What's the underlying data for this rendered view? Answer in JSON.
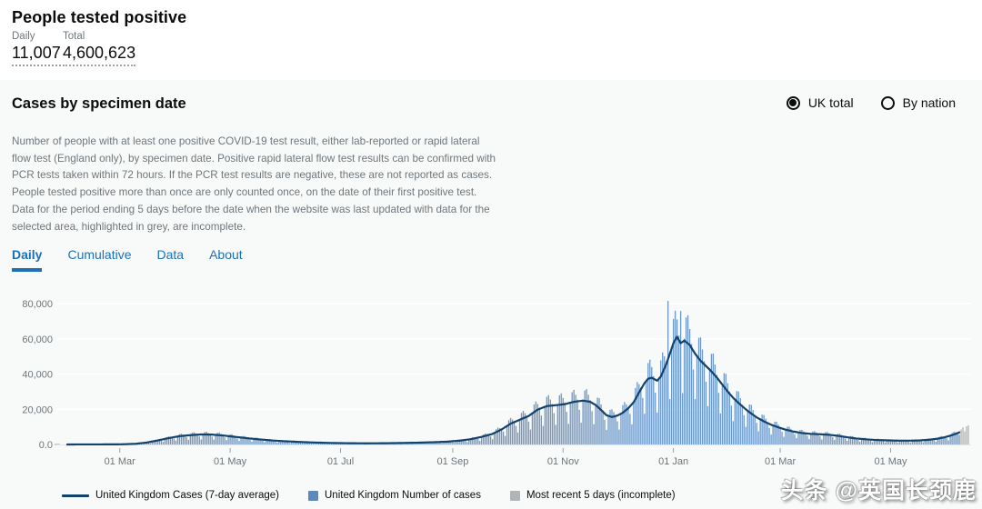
{
  "header": {
    "title": "People tested positive",
    "metrics": [
      {
        "label": "Daily",
        "value": "11,007"
      },
      {
        "label": "Total",
        "value": "4,600,623"
      }
    ]
  },
  "card": {
    "title": "Cases by specimen date",
    "area_toggle": [
      {
        "label": "UK total",
        "selected": true
      },
      {
        "label": "By nation",
        "selected": false
      }
    ],
    "description": "Number of people with at least one positive COVID-19 test result, either lab-reported or rapid lateral flow test (England only), by specimen date. Positive rapid lateral flow test results can be confirmed with PCR tests taken within 72 hours. If the PCR test results are negative, these are not reported as cases. People tested positive more than once are only counted once, on the date of their first positive test. Data for the period ending 5 days before the date when the website was last updated with data for the selected area, highlighted in grey, are incomplete.",
    "tabs": [
      {
        "label": "Daily",
        "active": true
      },
      {
        "label": "Cumulative",
        "active": false
      },
      {
        "label": "Data",
        "active": false
      },
      {
        "label": "About",
        "active": false
      }
    ]
  },
  "chart_data": {
    "type": "bar",
    "title": "Cases by specimen date — Daily",
    "grid": true,
    "legend_position": "bottom",
    "x_axis": {
      "total_days": 499,
      "tick_days": [
        29,
        90,
        151,
        213,
        274,
        335,
        394,
        455
      ],
      "tick_labels": [
        "01 Mar",
        "01 May",
        "01 Jul",
        "01 Sep",
        "01 Nov",
        "01 Jan",
        "01 Mar",
        "01 May"
      ]
    },
    "y_axis": {
      "ticks": [
        0,
        20000,
        40000,
        60000,
        80000
      ],
      "tick_labels": [
        "0.0",
        "20,000",
        "40,000",
        "60,000",
        "80,000"
      ],
      "ylim": [
        0,
        88000
      ]
    },
    "series": [
      {
        "name": "United Kingdom Cases (7-day average)",
        "type": "line",
        "color": "#12436d",
        "end_day": 493,
        "anchors": [
          [
            0,
            15
          ],
          [
            15,
            25
          ],
          [
            30,
            90
          ],
          [
            38,
            400
          ],
          [
            44,
            1100
          ],
          [
            50,
            2300
          ],
          [
            56,
            3600
          ],
          [
            62,
            4700
          ],
          [
            68,
            5300
          ],
          [
            74,
            5700
          ],
          [
            80,
            5600
          ],
          [
            86,
            5100
          ],
          [
            92,
            4400
          ],
          [
            99,
            3600
          ],
          [
            106,
            2900
          ],
          [
            113,
            2300
          ],
          [
            120,
            1850
          ],
          [
            127,
            1500
          ],
          [
            135,
            1150
          ],
          [
            145,
            880
          ],
          [
            155,
            720
          ],
          [
            165,
            650
          ],
          [
            175,
            700
          ],
          [
            185,
            850
          ],
          [
            195,
            1050
          ],
          [
            203,
            1300
          ],
          [
            210,
            1600
          ],
          [
            217,
            2200
          ],
          [
            223,
            3000
          ],
          [
            229,
            4300
          ],
          [
            235,
            6000
          ],
          [
            240,
            8500
          ],
          [
            245,
            11800
          ],
          [
            250,
            14000
          ],
          [
            255,
            16200
          ],
          [
            260,
            19800
          ],
          [
            265,
            21800
          ],
          [
            270,
            22300
          ],
          [
            275,
            22900
          ],
          [
            280,
            24200
          ],
          [
            285,
            24900
          ],
          [
            289,
            24200
          ],
          [
            292,
            22400
          ],
          [
            295,
            19600
          ],
          [
            298,
            16600
          ],
          [
            301,
            15600
          ],
          [
            304,
            16400
          ],
          [
            307,
            18000
          ],
          [
            310,
            20500
          ],
          [
            313,
            24000
          ],
          [
            316,
            29500
          ],
          [
            319,
            34800
          ],
          [
            321,
            37300
          ],
          [
            323,
            37900
          ],
          [
            326,
            36200
          ],
          [
            328,
            38500
          ],
          [
            331,
            45500
          ],
          [
            333,
            51500
          ],
          [
            335,
            57500
          ],
          [
            337,
            61200
          ],
          [
            339,
            57500
          ],
          [
            341,
            59000
          ],
          [
            344,
            56500
          ],
          [
            347,
            51500
          ],
          [
            350,
            47500
          ],
          [
            353,
            44500
          ],
          [
            356,
            41500
          ],
          [
            359,
            38000
          ],
          [
            362,
            34000
          ],
          [
            365,
            30000
          ],
          [
            368,
            26500
          ],
          [
            371,
            23500
          ],
          [
            374,
            20800
          ],
          [
            377,
            18300
          ],
          [
            381,
            15400
          ],
          [
            385,
            13100
          ],
          [
            389,
            11200
          ],
          [
            393,
            9700
          ],
          [
            397,
            8400
          ],
          [
            401,
            7400
          ],
          [
            406,
            6500
          ],
          [
            411,
            6000
          ],
          [
            416,
            5800
          ],
          [
            421,
            5500
          ],
          [
            426,
            4900
          ],
          [
            431,
            4100
          ],
          [
            436,
            3400
          ],
          [
            441,
            2950
          ],
          [
            446,
            2600
          ],
          [
            451,
            2400
          ],
          [
            456,
            2250
          ],
          [
            461,
            2150
          ],
          [
            466,
            2150
          ],
          [
            471,
            2300
          ],
          [
            476,
            2650
          ],
          [
            481,
            3300
          ],
          [
            485,
            4100
          ],
          [
            489,
            5300
          ],
          [
            492,
            6400
          ],
          [
            493,
            6900
          ]
        ]
      },
      {
        "name": "United Kingdom Number of cases",
        "type": "bar",
        "color": "#6d98c8",
        "weekly_pattern": [
          0.5,
          1.02,
          1.24,
          1.28,
          1.16,
          1.04,
          0.8
        ],
        "pattern_offset": 3,
        "spikes": {
          "332": 81500,
          "339": 75800
        }
      },
      {
        "name": "Most recent 5 days (incomplete)",
        "type": "bar",
        "color": "#b1b4b6",
        "start_day": 494,
        "values": [
          8500,
          9800,
          7400,
          10300,
          10900
        ]
      }
    ]
  },
  "legend_swatches": [
    "#12436d",
    "#5d8abc",
    "#b1b4b6"
  ],
  "watermark": {
    "text": "头条 @英国长颈鹿"
  }
}
